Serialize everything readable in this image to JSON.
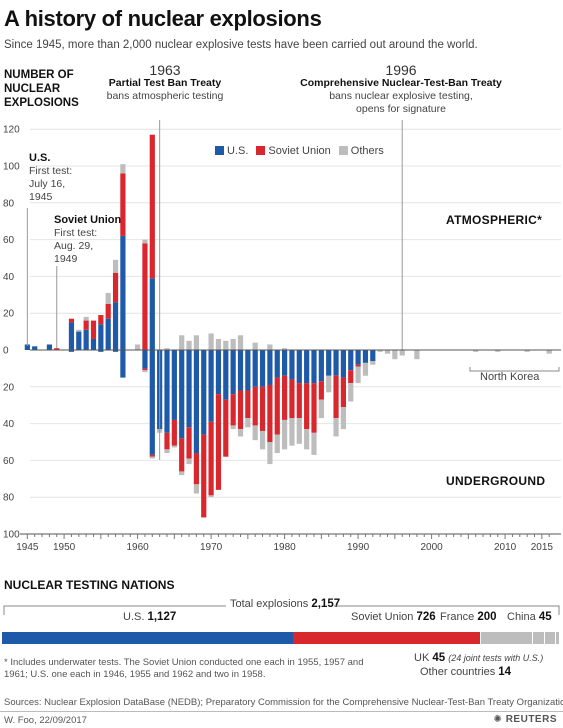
{
  "header": {
    "title": "A history of nuclear explosions",
    "subtitle": "Since 1945, more than 2,000 nuclear explosive tests have been carried out around the world.",
    "ylabel_line1": "NUMBER OF",
    "ylabel_line2": "NUCLEAR",
    "ylabel_line3": "EXPLOSIONS"
  },
  "annotations": {
    "ptbt_year": "1963",
    "ptbt_name": "Partial Test Ban Treaty",
    "ptbt_desc": "bans atmospheric testing",
    "ctbt_year": "1996",
    "ctbt_name": "Comprehensive Nuclear-Test-Ban Treaty",
    "ctbt_desc1": "bans nuclear explosive testing,",
    "ctbt_desc2": "opens for signature",
    "us_name": "U.S.",
    "us_line1": "First test:",
    "us_line2": "July 16,",
    "us_line3": "1945",
    "su_name": "Soviet Union",
    "su_line1": "First test:",
    "su_line2": "Aug. 29,",
    "su_line3": "1949",
    "atmospheric": "ATMOSPHERIC*",
    "underground": "UNDERGROUND",
    "north_korea": "North Korea"
  },
  "legend": [
    {
      "label": "U.S.",
      "color": "#1f5aa8"
    },
    {
      "label": "Soviet Union",
      "color": "#d9272e"
    },
    {
      "label": "Others",
      "color": "#bdbdbd"
    }
  ],
  "colors": {
    "us": "#1f5aa8",
    "soviet": "#d9272e",
    "others": "#bdbdbd"
  },
  "chart_data": {
    "type": "bar",
    "stacked": true,
    "ylim_atmospheric": [
      0,
      120
    ],
    "ylim_underground": [
      0,
      100
    ],
    "y_ticks_up": [
      0,
      20,
      40,
      60,
      80,
      100,
      120
    ],
    "y_ticks_down": [
      20,
      40,
      60,
      80,
      100
    ],
    "x_tick_labels": [
      1945,
      1950,
      1960,
      1970,
      1980,
      1990,
      2000,
      2010,
      2015
    ],
    "xlim": [
      1944,
      2017
    ],
    "series_names": [
      "U.S.",
      "Soviet Union",
      "Others"
    ],
    "atmospheric": [
      {
        "year": 1945,
        "us": 3,
        "soviet": 0,
        "others": 0
      },
      {
        "year": 1946,
        "us": 2,
        "soviet": 0,
        "others": 0
      },
      {
        "year": 1948,
        "us": 3,
        "soviet": 0,
        "others": 0
      },
      {
        "year": 1949,
        "us": 0,
        "soviet": 1,
        "others": 0
      },
      {
        "year": 1951,
        "us": 15,
        "soviet": 2,
        "others": 0
      },
      {
        "year": 1952,
        "us": 10,
        "soviet": 0,
        "others": 1
      },
      {
        "year": 1953,
        "us": 11,
        "soviet": 5,
        "others": 2
      },
      {
        "year": 1954,
        "us": 6,
        "soviet": 10,
        "others": 0
      },
      {
        "year": 1955,
        "us": 14,
        "soviet": 5,
        "others": 0
      },
      {
        "year": 1956,
        "us": 17,
        "soviet": 8,
        "others": 6
      },
      {
        "year": 1957,
        "us": 26,
        "soviet": 16,
        "others": 7
      },
      {
        "year": 1958,
        "us": 62,
        "soviet": 34,
        "others": 5
      },
      {
        "year": 1960,
        "us": 0,
        "soviet": 0,
        "others": 3
      },
      {
        "year": 1961,
        "us": 0,
        "soviet": 58,
        "others": 2
      },
      {
        "year": 1962,
        "us": 39,
        "soviet": 78,
        "others": 0
      },
      {
        "year": 1964,
        "us": 0,
        "soviet": 0,
        "others": 1
      },
      {
        "year": 1966,
        "us": 0,
        "soviet": 0,
        "others": 8
      },
      {
        "year": 1967,
        "us": 0,
        "soviet": 0,
        "others": 5
      },
      {
        "year": 1968,
        "us": 0,
        "soviet": 0,
        "others": 8
      },
      {
        "year": 1970,
        "us": 0,
        "soviet": 0,
        "others": 9
      },
      {
        "year": 1971,
        "us": 0,
        "soviet": 0,
        "others": 6
      },
      {
        "year": 1972,
        "us": 0,
        "soviet": 0,
        "others": 5
      },
      {
        "year": 1973,
        "us": 0,
        "soviet": 0,
        "others": 6
      },
      {
        "year": 1974,
        "us": 0,
        "soviet": 0,
        "others": 8
      },
      {
        "year": 1976,
        "us": 0,
        "soviet": 0,
        "others": 4
      },
      {
        "year": 1978,
        "us": 0,
        "soviet": 0,
        "others": 3
      },
      {
        "year": 1980,
        "us": 0,
        "soviet": 0,
        "others": 1
      }
    ],
    "underground": [
      {
        "year": 1951,
        "us": 1,
        "soviet": 0,
        "others": 0
      },
      {
        "year": 1955,
        "us": 1,
        "soviet": 0,
        "others": 0
      },
      {
        "year": 1957,
        "us": 1,
        "soviet": 0,
        "others": 0
      },
      {
        "year": 1958,
        "us": 15,
        "soviet": 0,
        "others": 0
      },
      {
        "year": 1961,
        "us": 10,
        "soviet": 1,
        "others": 1
      },
      {
        "year": 1962,
        "us": 57,
        "soviet": 1,
        "others": 1
      },
      {
        "year": 1963,
        "us": 43,
        "soviet": 0,
        "others": 2
      },
      {
        "year": 1964,
        "us": 45,
        "soviet": 9,
        "others": 2
      },
      {
        "year": 1965,
        "us": 38,
        "soviet": 14,
        "others": 1
      },
      {
        "year": 1966,
        "us": 48,
        "soviet": 18,
        "others": 2
      },
      {
        "year": 1967,
        "us": 42,
        "soviet": 17,
        "others": 3
      },
      {
        "year": 1968,
        "us": 56,
        "soviet": 17,
        "others": 5
      },
      {
        "year": 1969,
        "us": 46,
        "soviet": 45,
        "others": 0
      },
      {
        "year": 1970,
        "us": 39,
        "soviet": 40,
        "others": 1
      },
      {
        "year": 1971,
        "us": 24,
        "soviet": 52,
        "others": 0
      },
      {
        "year": 1972,
        "us": 27,
        "soviet": 31,
        "others": 0
      },
      {
        "year": 1973,
        "us": 24,
        "soviet": 17,
        "others": 2
      },
      {
        "year": 1974,
        "us": 22,
        "soviet": 21,
        "others": 4
      },
      {
        "year": 1975,
        "us": 22,
        "soviet": 15,
        "others": 5
      },
      {
        "year": 1976,
        "us": 20,
        "soviet": 21,
        "others": 8
      },
      {
        "year": 1977,
        "us": 20,
        "soviet": 24,
        "others": 10
      },
      {
        "year": 1978,
        "us": 19,
        "soviet": 31,
        "others": 12
      },
      {
        "year": 1979,
        "us": 15,
        "soviet": 31,
        "others": 10
      },
      {
        "year": 1980,
        "us": 14,
        "soviet": 24,
        "others": 16
      },
      {
        "year": 1981,
        "us": 16,
        "soviet": 21,
        "others": 15
      },
      {
        "year": 1982,
        "us": 18,
        "soviet": 19,
        "others": 14
      },
      {
        "year": 1983,
        "us": 18,
        "soviet": 25,
        "others": 11
      },
      {
        "year": 1984,
        "us": 18,
        "soviet": 27,
        "others": 12
      },
      {
        "year": 1985,
        "us": 17,
        "soviet": 10,
        "others": 10
      },
      {
        "year": 1986,
        "us": 14,
        "soviet": 0,
        "others": 9
      },
      {
        "year": 1987,
        "us": 14,
        "soviet": 23,
        "others": 10
      },
      {
        "year": 1988,
        "us": 15,
        "soviet": 16,
        "others": 12
      },
      {
        "year": 1989,
        "us": 11,
        "soviet": 7,
        "others": 10
      },
      {
        "year": 1990,
        "us": 8,
        "soviet": 1,
        "others": 9
      },
      {
        "year": 1991,
        "us": 7,
        "soviet": 0,
        "others": 7
      },
      {
        "year": 1992,
        "us": 6,
        "soviet": 0,
        "others": 2
      },
      {
        "year": 1993,
        "us": 0,
        "soviet": 0,
        "others": 1
      },
      {
        "year": 1994,
        "us": 0,
        "soviet": 0,
        "others": 2
      },
      {
        "year": 1995,
        "us": 0,
        "soviet": 0,
        "others": 5
      },
      {
        "year": 1996,
        "us": 0,
        "soviet": 0,
        "others": 3
      },
      {
        "year": 1998,
        "us": 0,
        "soviet": 0,
        "others": 5
      },
      {
        "year": 2006,
        "us": 0,
        "soviet": 0,
        "others": 1
      },
      {
        "year": 2009,
        "us": 0,
        "soviet": 0,
        "others": 1
      },
      {
        "year": 2013,
        "us": 0,
        "soviet": 0,
        "others": 1
      },
      {
        "year": 2016,
        "us": 0,
        "soviet": 0,
        "others": 2
      }
    ]
  },
  "nations": {
    "section_title": "NUCLEAR TESTING NATIONS",
    "total_label": "Total explosions",
    "total_value": "2,157",
    "total_number": 2157,
    "segments": [
      {
        "name": "U.S.",
        "value": "1,127",
        "count": 1127,
        "color": "#1f5aa8"
      },
      {
        "name": "Soviet Union",
        "value": "726",
        "count": 726,
        "color": "#d9272e"
      },
      {
        "name": "France",
        "value": "200",
        "count": 200,
        "color": "#bdbdbd"
      },
      {
        "name": "China",
        "value": "45",
        "count": 45,
        "color": "#bdbdbd"
      },
      {
        "name": "UK",
        "value": "45",
        "count": 45,
        "color": "#bdbdbd"
      },
      {
        "name": "Other countries",
        "value": "14",
        "count": 14,
        "color": "#bdbdbd"
      }
    ],
    "uk_note": "(24 joint tests with U.S.)"
  },
  "footer": {
    "footnote": "* Includes underwater tests. The Soviet Union conducted one each in 1955, 1957 and 1961; U.S. one each in 1946, 1955 and 1962 and two in 1958.",
    "sources": "Sources: Nuclear Explosion DataBase (NEDB); Preparatory Commission for the Comprehensive Nuclear-Test-Ban Treaty Organization.",
    "byline": "W. Foo, 22/09/2017",
    "brand": "REUTERS"
  }
}
